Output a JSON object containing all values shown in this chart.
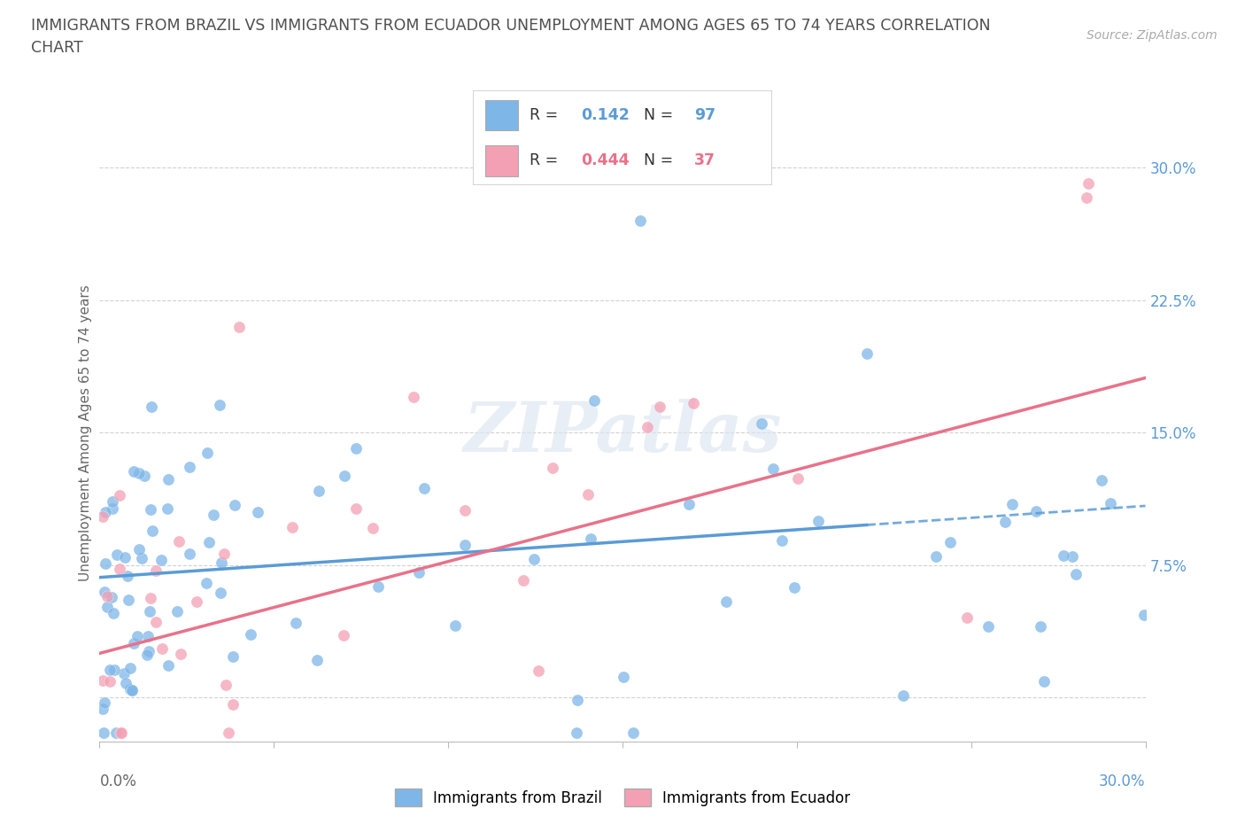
{
  "title_line1": "IMMIGRANTS FROM BRAZIL VS IMMIGRANTS FROM ECUADOR UNEMPLOYMENT AMONG AGES 65 TO 74 YEARS CORRELATION",
  "title_line2": "CHART",
  "source": "Source: ZipAtlas.com",
  "ylabel": "Unemployment Among Ages 65 to 74 years",
  "xlim": [
    0.0,
    0.3
  ],
  "ylim_min": -0.025,
  "ylim_max": 0.325,
  "brazil_color": "#7EB6E8",
  "ecuador_color": "#F4A0B4",
  "brazil_line_color": "#5B9BD5",
  "ecuador_line_color": "#E8728A",
  "brazil_R": 0.142,
  "brazil_N": 97,
  "ecuador_R": 0.444,
  "ecuador_N": 37,
  "legend_brazil_label": "Immigrants from Brazil",
  "legend_ecuador_label": "Immigrants from Ecuador",
  "watermark": "ZIPatlas",
  "background_color": "#ffffff",
  "grid_color": "#cccccc",
  "title_color": "#505050",
  "ytick_values": [
    0.0,
    0.075,
    0.15,
    0.225,
    0.3
  ],
  "ytick_labels": [
    "",
    "7.5%",
    "15.0%",
    "22.5%",
    "30.0%"
  ],
  "ytick_color": "#5B9BD5",
  "xtick_corner_left": "0.0%",
  "xtick_corner_right": "30.0%",
  "brazil_intercept": 0.069,
  "brazil_slope": 0.065,
  "ecuador_intercept": 0.03,
  "ecuador_slope": 0.52
}
